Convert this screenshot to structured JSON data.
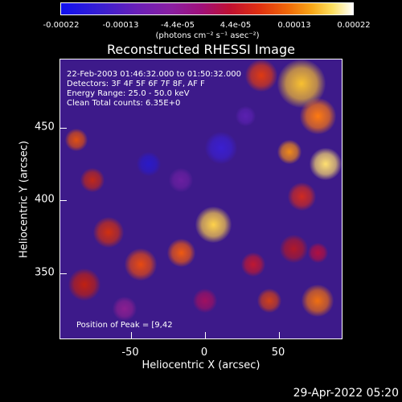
{
  "colorbar": {
    "tick_labels": [
      "-0.00022",
      "-0.00013",
      "-4.4e-05",
      "4.4e-05",
      "0.00013",
      "0.00022"
    ],
    "units": "(photons cm⁻² s⁻¹ asec⁻²)"
  },
  "title": "Reconstructed RHESSI Image",
  "annotations": {
    "line1": "22-Feb-2003 01:46:32.000 to 01:50:32.000",
    "line2": "Detectors: 3F 4F 5F 6F 7F 8F, AF F",
    "line3": "Energy Range: 25.0 - 50.0 keV",
    "line4": "Clean     Total counts: 6.35E+0",
    "peak": "Position of Peak = [9,42"
  },
  "x_axis": {
    "label": "Heliocentric X (arcsec)",
    "ticks": [
      "-50",
      "0",
      "50"
    ]
  },
  "y_axis": {
    "label": "Heliocentric Y (arcsec)",
    "ticks": [
      "450",
      "400",
      "350"
    ]
  },
  "timestamp": "29-Apr-2022 05:20"
}
